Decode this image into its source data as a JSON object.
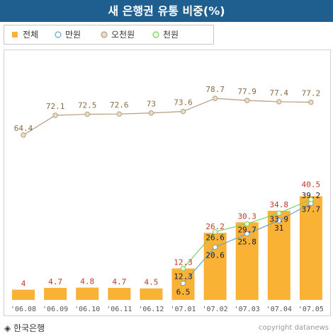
{
  "title": "새 은행권 유통 비중(%)",
  "source": "◈ 한국은행",
  "credit": "copyright datanews",
  "colors": {
    "header": "#1f5f8f",
    "bar": "#f9b233",
    "line_50000": "#b69c7e",
    "line_10000": "#6fa3d0",
    "line_1000": "#7fcf6a",
    "label_total": "#c0392b",
    "label_50000": "#8a6a44",
    "label_other": "#1a1a40"
  },
  "legend": [
    {
      "key": "total",
      "label": "전체",
      "marker": "square"
    },
    {
      "key": "w10000",
      "label": "만원",
      "marker": "circle"
    },
    {
      "key": "w50000",
      "label": "오천원",
      "marker": "circle"
    },
    {
      "key": "w1000",
      "label": "천원",
      "marker": "circle"
    }
  ],
  "chart_data": {
    "type": "bar",
    "categories": [
      "'06.08",
      "'06.09",
      "'06.10",
      "'06.11",
      "'06.12",
      "'07.01",
      "'07.02",
      "'07.03",
      "'07.04",
      "'07.05"
    ],
    "series": [
      {
        "name": "전체",
        "type": "bar",
        "values": [
          4,
          4.7,
          4.8,
          4.7,
          4.5,
          12.3,
          26.2,
          30.3,
          34.8,
          40.5
        ]
      },
      {
        "name": "오천원",
        "type": "line",
        "values": [
          64.4,
          72.1,
          72.5,
          72.6,
          73,
          73.6,
          78.7,
          77.9,
          77.4,
          77.2
        ]
      },
      {
        "name": "만원",
        "type": "line",
        "values": [
          null,
          null,
          null,
          null,
          null,
          6.5,
          20.6,
          25.8,
          31,
          37.7
        ]
      },
      {
        "name": "천원",
        "type": "line",
        "values": [
          null,
          null,
          null,
          null,
          null,
          12.3,
          26.6,
          29.7,
          33.9,
          39.2
        ]
      }
    ],
    "ylim": [
      0,
      88
    ],
    "grid": false,
    "legend_position": "top-left"
  }
}
